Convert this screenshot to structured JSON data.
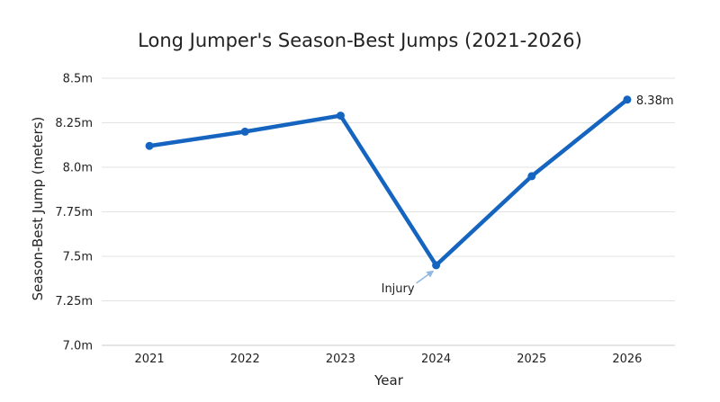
{
  "chart_data": {
    "type": "line",
    "title": "Long Jumper's Season-Best Jumps (2021-2026)",
    "xlabel": "Year",
    "ylabel": "Season-Best Jump (meters)",
    "categories": [
      "2021",
      "2022",
      "2023",
      "2024",
      "2025",
      "2026"
    ],
    "series": [
      {
        "values": [
          8.12,
          8.2,
          8.29,
          7.45,
          7.95,
          8.38
        ]
      }
    ],
    "ylim": [
      7.0,
      8.5
    ],
    "yticks": [
      7.0,
      7.25,
      7.5,
      7.75,
      8.0,
      8.25,
      8.5
    ],
    "ytick_labels": [
      "7.0m",
      "7.25m",
      "7.5m",
      "7.75m",
      "8.0m",
      "8.25m",
      "8.5m"
    ],
    "grid": "horizontal",
    "line_color": "#1565c0",
    "data_labels": [
      {
        "category": "2026",
        "text": "8.38m"
      }
    ],
    "annotations": [
      {
        "category": "2024",
        "text": "Injury",
        "arrow_color": "#90b8e0"
      }
    ]
  }
}
